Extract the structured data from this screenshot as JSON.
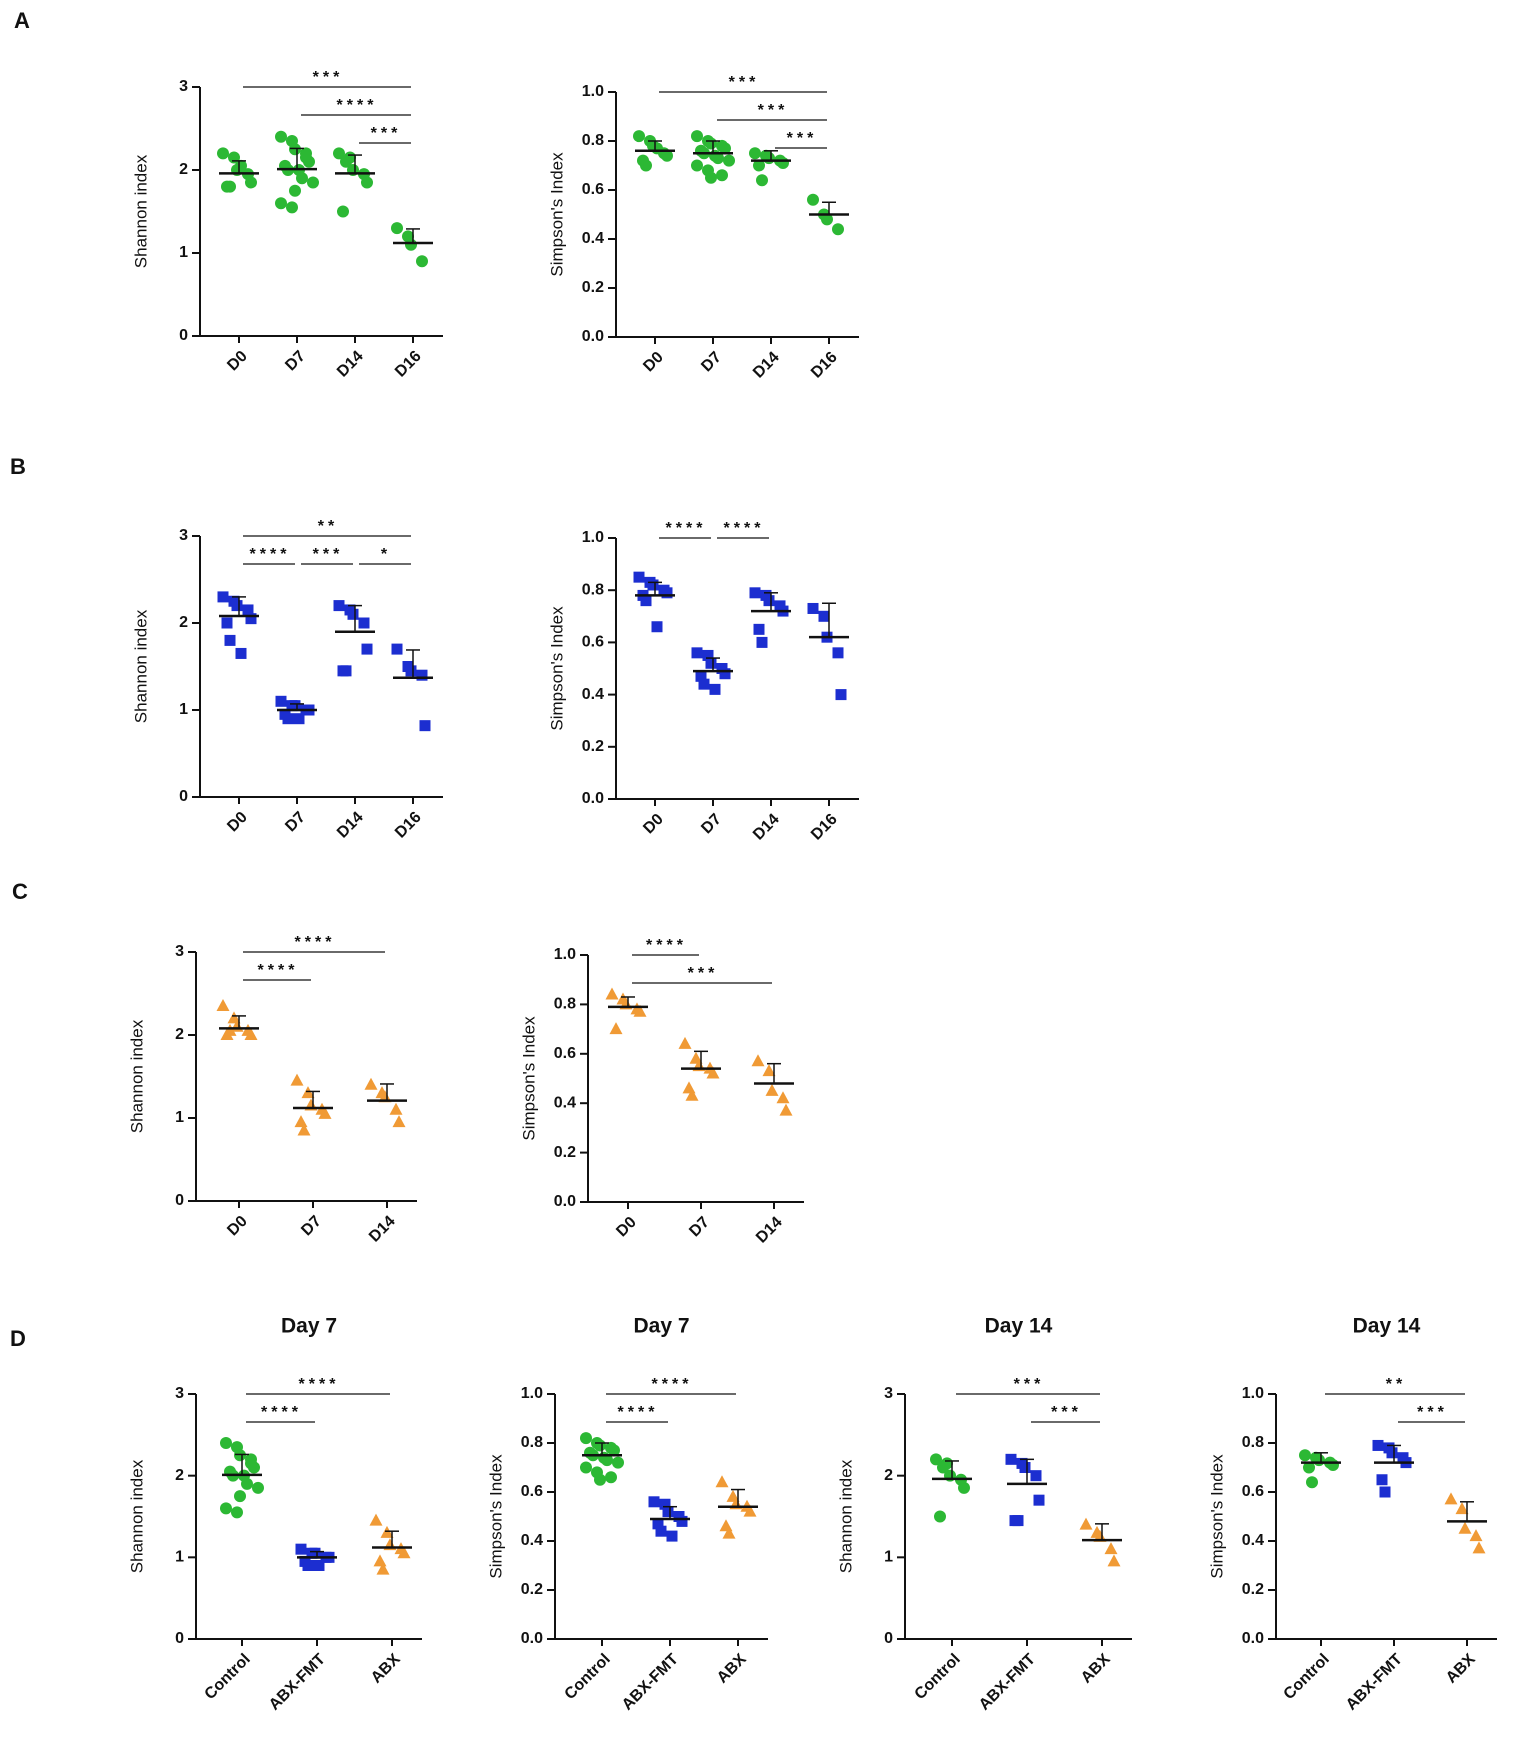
{
  "panel_labels": [
    "A",
    "B",
    "C",
    "D"
  ],
  "chart_data": [
    {
      "type": "dot",
      "ylabel": "Shannon index",
      "categories": [
        "D0",
        "D7",
        "D14",
        "D16"
      ],
      "ylim": [
        0,
        3
      ],
      "yticks": [
        0,
        1,
        2,
        3
      ],
      "values": [
        [
          2.2,
          2.15,
          2.0,
          1.95,
          1.85,
          1.8,
          1.8,
          2.05
        ],
        [
          2.4,
          2.35,
          2.25,
          2.2,
          2.1,
          2.05,
          2.0,
          2.0,
          1.9,
          1.85,
          1.6,
          1.55,
          1.75,
          2.15
        ],
        [
          2.2,
          2.15,
          2.0,
          1.95,
          1.85,
          1.5,
          2.1
        ],
        [
          1.3,
          1.2,
          1.1,
          0.9
        ]
      ],
      "means": [
        1.96,
        2.01,
        1.96,
        1.12
      ],
      "sds": [
        0.15,
        0.25,
        0.22,
        0.17
      ],
      "colors": [
        "#2cb834",
        "#2cb834",
        "#2cb834",
        "#2cb834"
      ],
      "markers": [
        "circle",
        "circle",
        "circle",
        "circle"
      ],
      "brackets": [
        {
          "from": 0,
          "to": 3,
          "label": "***"
        },
        {
          "from": 1,
          "to": 3,
          "label": "****"
        },
        {
          "from": 2,
          "to": 3,
          "label": "***"
        }
      ]
    },
    {
      "type": "dot",
      "ylabel": "Simpson's Index",
      "categories": [
        "D0",
        "D7",
        "D14",
        "D16"
      ],
      "ylim": [
        0,
        1
      ],
      "yticks": [
        {
          "value": 0,
          "label": "0.0"
        },
        0.2,
        0.4,
        0.6,
        0.8,
        {
          "value": 1,
          "label": "1.0"
        }
      ],
      "values": [
        [
          0.82,
          0.8,
          0.78,
          0.75,
          0.74,
          0.72,
          0.7,
          0.77
        ],
        [
          0.82,
          0.8,
          0.79,
          0.78,
          0.77,
          0.76,
          0.75,
          0.74,
          0.73,
          0.72,
          0.7,
          0.68,
          0.65,
          0.66
        ],
        [
          0.75,
          0.74,
          0.73,
          0.72,
          0.71,
          0.7,
          0.64
        ],
        [
          0.56,
          0.5,
          0.48,
          0.44
        ]
      ],
      "means": [
        0.76,
        0.75,
        0.72,
        0.5
      ],
      "sds": [
        0.04,
        0.05,
        0.04,
        0.05
      ],
      "colors": [
        "#2cb834",
        "#2cb834",
        "#2cb834",
        "#2cb834"
      ],
      "markers": [
        "circle",
        "circle",
        "circle",
        "circle"
      ],
      "brackets": [
        {
          "from": 0,
          "to": 3,
          "label": "***"
        },
        {
          "from": 1,
          "to": 3,
          "label": "***"
        },
        {
          "from": 2,
          "to": 3,
          "label": "***"
        }
      ]
    },
    {
      "type": "dot",
      "ylabel": "Shannon index",
      "categories": [
        "D0",
        "D7",
        "D14",
        "D16"
      ],
      "ylim": [
        0,
        3
      ],
      "yticks": [
        0,
        1,
        2,
        3
      ],
      "values": [
        [
          2.3,
          2.25,
          2.2,
          2.15,
          2.05,
          2.0,
          1.8,
          1.65
        ],
        [
          1.1,
          1.05,
          1.05,
          1.0,
          1.0,
          0.95,
          0.9,
          0.9
        ],
        [
          2.2,
          2.15,
          2.1,
          2.0,
          1.7,
          1.45,
          1.45
        ],
        [
          1.7,
          1.5,
          1.45,
          1.4,
          0.82
        ]
      ],
      "means": [
        2.08,
        1.0,
        1.9,
        1.37
      ],
      "sds": [
        0.22,
        0.07,
        0.3,
        0.32
      ],
      "colors": [
        "#1c2ed0",
        "#1c2ed0",
        "#1c2ed0",
        "#1c2ed0"
      ],
      "markers": [
        "square",
        "square",
        "square",
        "square"
      ],
      "brackets": [
        {
          "from": 0,
          "to": 3,
          "label": "**"
        },
        {
          "from": 0,
          "to": 1,
          "label": "****"
        },
        {
          "from": 1,
          "to": 2,
          "label": "***"
        },
        {
          "from": 2,
          "to": 3,
          "label": "*"
        }
      ]
    },
    {
      "type": "dot",
      "ylabel": "Simpson's Index",
      "categories": [
        "D0",
        "D7",
        "D14",
        "D16"
      ],
      "ylim": [
        0,
        1
      ],
      "yticks": [
        {
          "value": 0,
          "label": "0.0"
        },
        0.2,
        0.4,
        0.6,
        0.8,
        {
          "value": 1,
          "label": "1.0"
        }
      ],
      "values": [
        [
          0.85,
          0.83,
          0.82,
          0.8,
          0.79,
          0.78,
          0.76,
          0.66
        ],
        [
          0.56,
          0.55,
          0.52,
          0.5,
          0.48,
          0.47,
          0.44,
          0.42
        ],
        [
          0.79,
          0.78,
          0.76,
          0.74,
          0.72,
          0.65,
          0.6
        ],
        [
          0.73,
          0.7,
          0.62,
          0.56,
          0.4
        ]
      ],
      "means": [
        0.78,
        0.49,
        0.72,
        0.62
      ],
      "sds": [
        0.05,
        0.05,
        0.07,
        0.13
      ],
      "colors": [
        "#1c2ed0",
        "#1c2ed0",
        "#1c2ed0",
        "#1c2ed0"
      ],
      "markers": [
        "square",
        "square",
        "square",
        "square"
      ],
      "brackets": [
        {
          "from": 0,
          "to": 1,
          "label": "****"
        },
        {
          "from": 1,
          "to": 2,
          "label": "****"
        }
      ]
    },
    {
      "type": "dot",
      "ylabel": "Shannon index",
      "categories": [
        "D0",
        "D7",
        "D14"
      ],
      "ylim": [
        0,
        3
      ],
      "yticks": [
        0,
        1,
        2,
        3
      ],
      "values": [
        [
          2.35,
          2.2,
          2.1,
          2.05,
          2.0,
          2.0,
          2.05
        ],
        [
          1.45,
          1.3,
          1.15,
          1.1,
          1.05,
          0.95,
          0.85
        ],
        [
          1.4,
          1.3,
          1.25,
          1.1,
          0.95
        ]
      ],
      "means": [
        2.08,
        1.12,
        1.21
      ],
      "sds": [
        0.15,
        0.2,
        0.2
      ],
      "colors": [
        "#f09a35",
        "#f09a35",
        "#f09a35"
      ],
      "markers": [
        "triangle",
        "triangle",
        "triangle"
      ],
      "brackets": [
        {
          "from": 0,
          "to": 2,
          "label": "****"
        },
        {
          "from": 0,
          "to": 1,
          "label": "****"
        }
      ]
    },
    {
      "type": "dot",
      "ylabel": "Simpson's Index",
      "categories": [
        "D0",
        "D7",
        "D14"
      ],
      "ylim": [
        0,
        1
      ],
      "yticks": [
        {
          "value": 0,
          "label": "0.0"
        },
        0.2,
        0.4,
        0.6,
        0.8,
        {
          "value": 1,
          "label": "1.0"
        }
      ],
      "values": [
        [
          0.84,
          0.82,
          0.8,
          0.78,
          0.77,
          0.7
        ],
        [
          0.64,
          0.58,
          0.55,
          0.54,
          0.52,
          0.46,
          0.43
        ],
        [
          0.57,
          0.53,
          0.45,
          0.42,
          0.37
        ]
      ],
      "means": [
        0.79,
        0.54,
        0.48
      ],
      "sds": [
        0.04,
        0.07,
        0.08
      ],
      "colors": [
        "#f09a35",
        "#f09a35",
        "#f09a35"
      ],
      "markers": [
        "triangle",
        "triangle",
        "triangle"
      ],
      "brackets": [
        {
          "from": 0,
          "to": 1,
          "label": "****"
        },
        {
          "from": 0,
          "to": 2,
          "label": "***"
        }
      ]
    },
    {
      "type": "dot",
      "title": "Day 7",
      "ylabel": "Shannon index",
      "categories": [
        "Control",
        "ABX-FMT",
        "ABX"
      ],
      "ylim": [
        0,
        3
      ],
      "yticks": [
        0,
        1,
        2,
        3
      ],
      "values": [
        [
          2.4,
          2.35,
          2.25,
          2.2,
          2.1,
          2.05,
          2.0,
          2.0,
          1.9,
          1.85,
          1.6,
          1.55,
          1.75,
          2.15
        ],
        [
          1.1,
          1.05,
          1.05,
          1.0,
          1.0,
          0.95,
          0.9,
          0.9
        ],
        [
          1.45,
          1.3,
          1.15,
          1.1,
          1.05,
          0.95,
          0.85
        ]
      ],
      "means": [
        2.01,
        1.0,
        1.12
      ],
      "sds": [
        0.25,
        0.07,
        0.2
      ],
      "colors": [
        "#2cb834",
        "#1c2ed0",
        "#f09a35"
      ],
      "markers": [
        "circle",
        "square",
        "triangle"
      ],
      "brackets": [
        {
          "from": 0,
          "to": 2,
          "label": "****"
        },
        {
          "from": 0,
          "to": 1,
          "label": "****"
        }
      ]
    },
    {
      "type": "dot",
      "title": "Day 7",
      "ylabel": "Simpson's Index",
      "categories": [
        "Control",
        "ABX-FMT",
        "ABX"
      ],
      "ylim": [
        0,
        1
      ],
      "yticks": [
        {
          "value": 0,
          "label": "0.0"
        },
        0.2,
        0.4,
        0.6,
        0.8,
        {
          "value": 1,
          "label": "1.0"
        }
      ],
      "values": [
        [
          0.82,
          0.8,
          0.79,
          0.78,
          0.77,
          0.76,
          0.75,
          0.74,
          0.73,
          0.72,
          0.7,
          0.68,
          0.65,
          0.66
        ],
        [
          0.56,
          0.55,
          0.52,
          0.5,
          0.48,
          0.47,
          0.44,
          0.42
        ],
        [
          0.64,
          0.58,
          0.55,
          0.54,
          0.52,
          0.46,
          0.43
        ]
      ],
      "means": [
        0.75,
        0.49,
        0.54
      ],
      "sds": [
        0.05,
        0.05,
        0.07
      ],
      "colors": [
        "#2cb834",
        "#1c2ed0",
        "#f09a35"
      ],
      "markers": [
        "circle",
        "square",
        "triangle"
      ],
      "brackets": [
        {
          "from": 0,
          "to": 2,
          "label": "****"
        },
        {
          "from": 0,
          "to": 1,
          "label": "****"
        }
      ]
    },
    {
      "type": "dot",
      "title": "Day 14",
      "ylabel": "Shannon index",
      "categories": [
        "Control",
        "ABX-FMT",
        "ABX"
      ],
      "ylim": [
        0,
        3
      ],
      "yticks": [
        0,
        1,
        2,
        3
      ],
      "values": [
        [
          2.2,
          2.15,
          2.0,
          1.95,
          1.85,
          1.5,
          2.1
        ],
        [
          2.2,
          2.15,
          2.1,
          2.0,
          1.7,
          1.45,
          1.45
        ],
        [
          1.4,
          1.3,
          1.25,
          1.1,
          0.95
        ]
      ],
      "means": [
        1.96,
        1.9,
        1.21
      ],
      "sds": [
        0.22,
        0.3,
        0.2
      ],
      "colors": [
        "#2cb834",
        "#1c2ed0",
        "#f09a35"
      ],
      "markers": [
        "circle",
        "square",
        "triangle"
      ],
      "brackets": [
        {
          "from": 0,
          "to": 2,
          "label": "***"
        },
        {
          "from": 1,
          "to": 2,
          "label": "***"
        }
      ]
    },
    {
      "type": "dot",
      "title": "Day 14",
      "ylabel": "Simpson's Index",
      "categories": [
        "Control",
        "ABX-FMT",
        "ABX"
      ],
      "ylim": [
        0,
        1
      ],
      "yticks": [
        {
          "value": 0,
          "label": "0.0"
        },
        0.2,
        0.4,
        0.6,
        0.8,
        {
          "value": 1,
          "label": "1.0"
        }
      ],
      "values": [
        [
          0.75,
          0.74,
          0.73,
          0.72,
          0.71,
          0.7,
          0.64
        ],
        [
          0.79,
          0.78,
          0.76,
          0.74,
          0.72,
          0.65,
          0.6
        ],
        [
          0.57,
          0.53,
          0.45,
          0.42,
          0.37
        ]
      ],
      "means": [
        0.72,
        0.72,
        0.48
      ],
      "sds": [
        0.04,
        0.07,
        0.08
      ],
      "colors": [
        "#2cb834",
        "#1c2ed0",
        "#f09a35"
      ],
      "markers": [
        "circle",
        "square",
        "triangle"
      ],
      "brackets": [
        {
          "from": 0,
          "to": 2,
          "label": "**"
        },
        {
          "from": 1,
          "to": 2,
          "label": "***"
        }
      ]
    }
  ]
}
